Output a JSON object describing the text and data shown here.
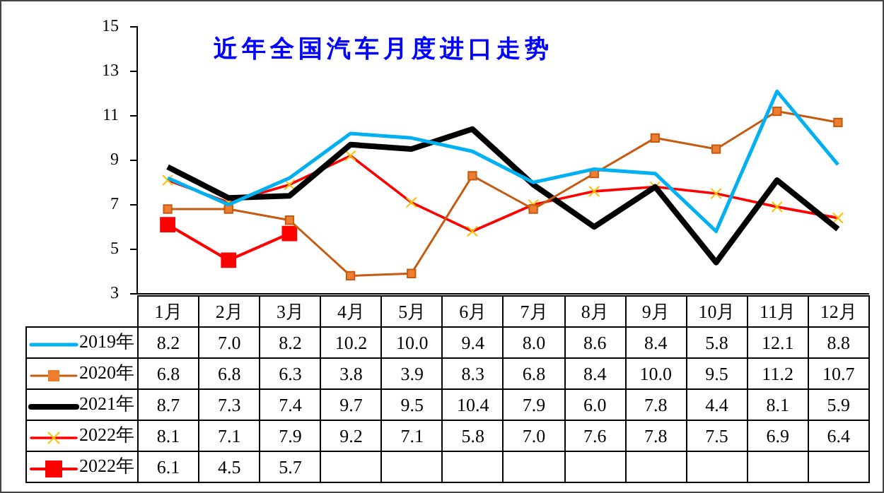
{
  "chart_data": {
    "type": "line",
    "title": "近年全国汽车月度进口走势",
    "categories": [
      "1月",
      "2月",
      "3月",
      "4月",
      "5月",
      "6月",
      "7月",
      "8月",
      "9月",
      "10月",
      "11月",
      "12月"
    ],
    "ylim": [
      3,
      15
    ],
    "yticks": [
      3,
      5,
      7,
      9,
      11,
      13,
      15
    ],
    "grid": false,
    "legend": "bottom",
    "series": [
      {
        "name": "2019年",
        "color": "#00b0f0",
        "marker": "none",
        "values": [
          8.2,
          7.0,
          8.2,
          10.2,
          10.0,
          9.4,
          8.0,
          8.6,
          8.4,
          5.8,
          12.1,
          8.8
        ],
        "value_labels": [
          "8.2",
          "7.0",
          "8.2",
          "10.2",
          "10.0",
          "9.4",
          "8.0",
          "8.6",
          "8.4",
          "5.8",
          "12.1",
          "8.8"
        ]
      },
      {
        "name": "2020年",
        "color": "#c55a11",
        "marker": "square",
        "values": [
          6.8,
          6.8,
          6.3,
          3.8,
          3.9,
          8.3,
          6.8,
          8.4,
          10.0,
          9.5,
          11.2,
          10.7
        ],
        "value_labels": [
          "6.8",
          "6.8",
          "6.3",
          "3.8",
          "3.9",
          "8.3",
          "6.8",
          "8.4",
          "10.0",
          "9.5",
          "11.2",
          "10.7"
        ]
      },
      {
        "name": "2021年",
        "color": "#000000",
        "marker": "none",
        "values": [
          8.7,
          7.3,
          7.4,
          9.7,
          9.5,
          10.4,
          7.9,
          6.0,
          7.8,
          4.4,
          8.1,
          5.9
        ],
        "value_labels": [
          "8.7",
          "7.3",
          "7.4",
          "9.7",
          "9.5",
          "10.4",
          "7.9",
          "6.0",
          "7.8",
          "4.4",
          "8.1",
          "5.9"
        ]
      },
      {
        "name": "2022年",
        "color": "#ff0000",
        "marker": "cross",
        "values": [
          8.1,
          7.1,
          7.9,
          9.2,
          7.1,
          5.8,
          7.0,
          7.6,
          7.8,
          7.5,
          6.9,
          6.4
        ],
        "value_labels": [
          "8.1",
          "7.1",
          "7.9",
          "9.2",
          "7.1",
          "5.8",
          "7.0",
          "7.6",
          "7.8",
          "7.5",
          "6.9",
          "6.4"
        ]
      },
      {
        "name": "2022年",
        "color": "#ff0000",
        "marker": "square",
        "values": [
          6.1,
          4.5,
          5.7,
          null,
          null,
          null,
          null,
          null,
          null,
          null,
          null,
          null
        ],
        "value_labels": [
          "6.1",
          "4.5",
          "5.7",
          null,
          null,
          null,
          null,
          null,
          null,
          null,
          null,
          null
        ]
      }
    ]
  }
}
